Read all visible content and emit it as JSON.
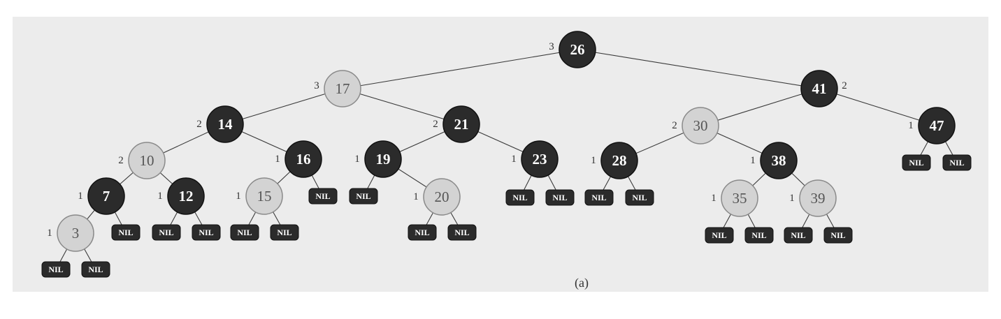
{
  "caption": "(a)",
  "nil_label": "NIL",
  "colors": {
    "black_node": "#2b2b2b",
    "red_node": "#d3d3d3",
    "background": "#ececec"
  },
  "nodes": [
    {
      "id": "n26",
      "key": "26",
      "color": "black",
      "bh": "3"
    },
    {
      "id": "n17",
      "key": "17",
      "color": "red",
      "bh": "3"
    },
    {
      "id": "n41",
      "key": "41",
      "color": "black",
      "bh": "2"
    },
    {
      "id": "n14",
      "key": "14",
      "color": "black",
      "bh": "2"
    },
    {
      "id": "n21",
      "key": "21",
      "color": "black",
      "bh": "2"
    },
    {
      "id": "n30",
      "key": "30",
      "color": "red",
      "bh": "2"
    },
    {
      "id": "n47",
      "key": "47",
      "color": "black",
      "bh": "1"
    },
    {
      "id": "n10",
      "key": "10",
      "color": "red",
      "bh": "2"
    },
    {
      "id": "n16",
      "key": "16",
      "color": "black",
      "bh": "1"
    },
    {
      "id": "n19",
      "key": "19",
      "color": "black",
      "bh": "1"
    },
    {
      "id": "n23",
      "key": "23",
      "color": "black",
      "bh": "1"
    },
    {
      "id": "n28",
      "key": "28",
      "color": "black",
      "bh": "1"
    },
    {
      "id": "n38",
      "key": "38",
      "color": "black",
      "bh": "1"
    },
    {
      "id": "n7",
      "key": "7",
      "color": "black",
      "bh": "1"
    },
    {
      "id": "n12",
      "key": "12",
      "color": "black",
      "bh": "1"
    },
    {
      "id": "n15",
      "key": "15",
      "color": "red",
      "bh": "1"
    },
    {
      "id": "n20",
      "key": "20",
      "color": "red",
      "bh": "1"
    },
    {
      "id": "n35",
      "key": "35",
      "color": "red",
      "bh": "1"
    },
    {
      "id": "n39",
      "key": "39",
      "color": "red",
      "bh": "1"
    },
    {
      "id": "n3",
      "key": "3",
      "color": "red",
      "bh": "1"
    }
  ],
  "edges": [
    [
      "n26",
      "n17"
    ],
    [
      "n26",
      "n41"
    ],
    [
      "n17",
      "n14"
    ],
    [
      "n17",
      "n21"
    ],
    [
      "n41",
      "n30"
    ],
    [
      "n41",
      "n47"
    ],
    [
      "n14",
      "n10"
    ],
    [
      "n14",
      "n16"
    ],
    [
      "n21",
      "n19"
    ],
    [
      "n21",
      "n23"
    ],
    [
      "n30",
      "n28"
    ],
    [
      "n30",
      "n38"
    ],
    [
      "n47",
      "nil_47L"
    ],
    [
      "n47",
      "nil_47R"
    ],
    [
      "n10",
      "n7"
    ],
    [
      "n10",
      "n12"
    ],
    [
      "n16",
      "n15"
    ],
    [
      "n16",
      "nil_16R"
    ],
    [
      "n19",
      "nil_19L"
    ],
    [
      "n19",
      "n20"
    ],
    [
      "n23",
      "nil_23L"
    ],
    [
      "n23",
      "nil_23R"
    ],
    [
      "n28",
      "nil_28L"
    ],
    [
      "n28",
      "nil_28R"
    ],
    [
      "n38",
      "n35"
    ],
    [
      "n38",
      "n39"
    ],
    [
      "n7",
      "n3"
    ],
    [
      "n7",
      "nil_7R"
    ],
    [
      "n12",
      "nil_12L"
    ],
    [
      "n12",
      "nil_12R"
    ],
    [
      "n15",
      "nil_15L"
    ],
    [
      "n15",
      "nil_15R"
    ],
    [
      "n20",
      "nil_20L"
    ],
    [
      "n20",
      "nil_20R"
    ],
    [
      "n35",
      "nil_35L"
    ],
    [
      "n35",
      "nil_35R"
    ],
    [
      "n39",
      "nil_39L"
    ],
    [
      "n39",
      "nil_39R"
    ],
    [
      "n3",
      "nil_3L"
    ],
    [
      "n3",
      "nil_3R"
    ]
  ]
}
